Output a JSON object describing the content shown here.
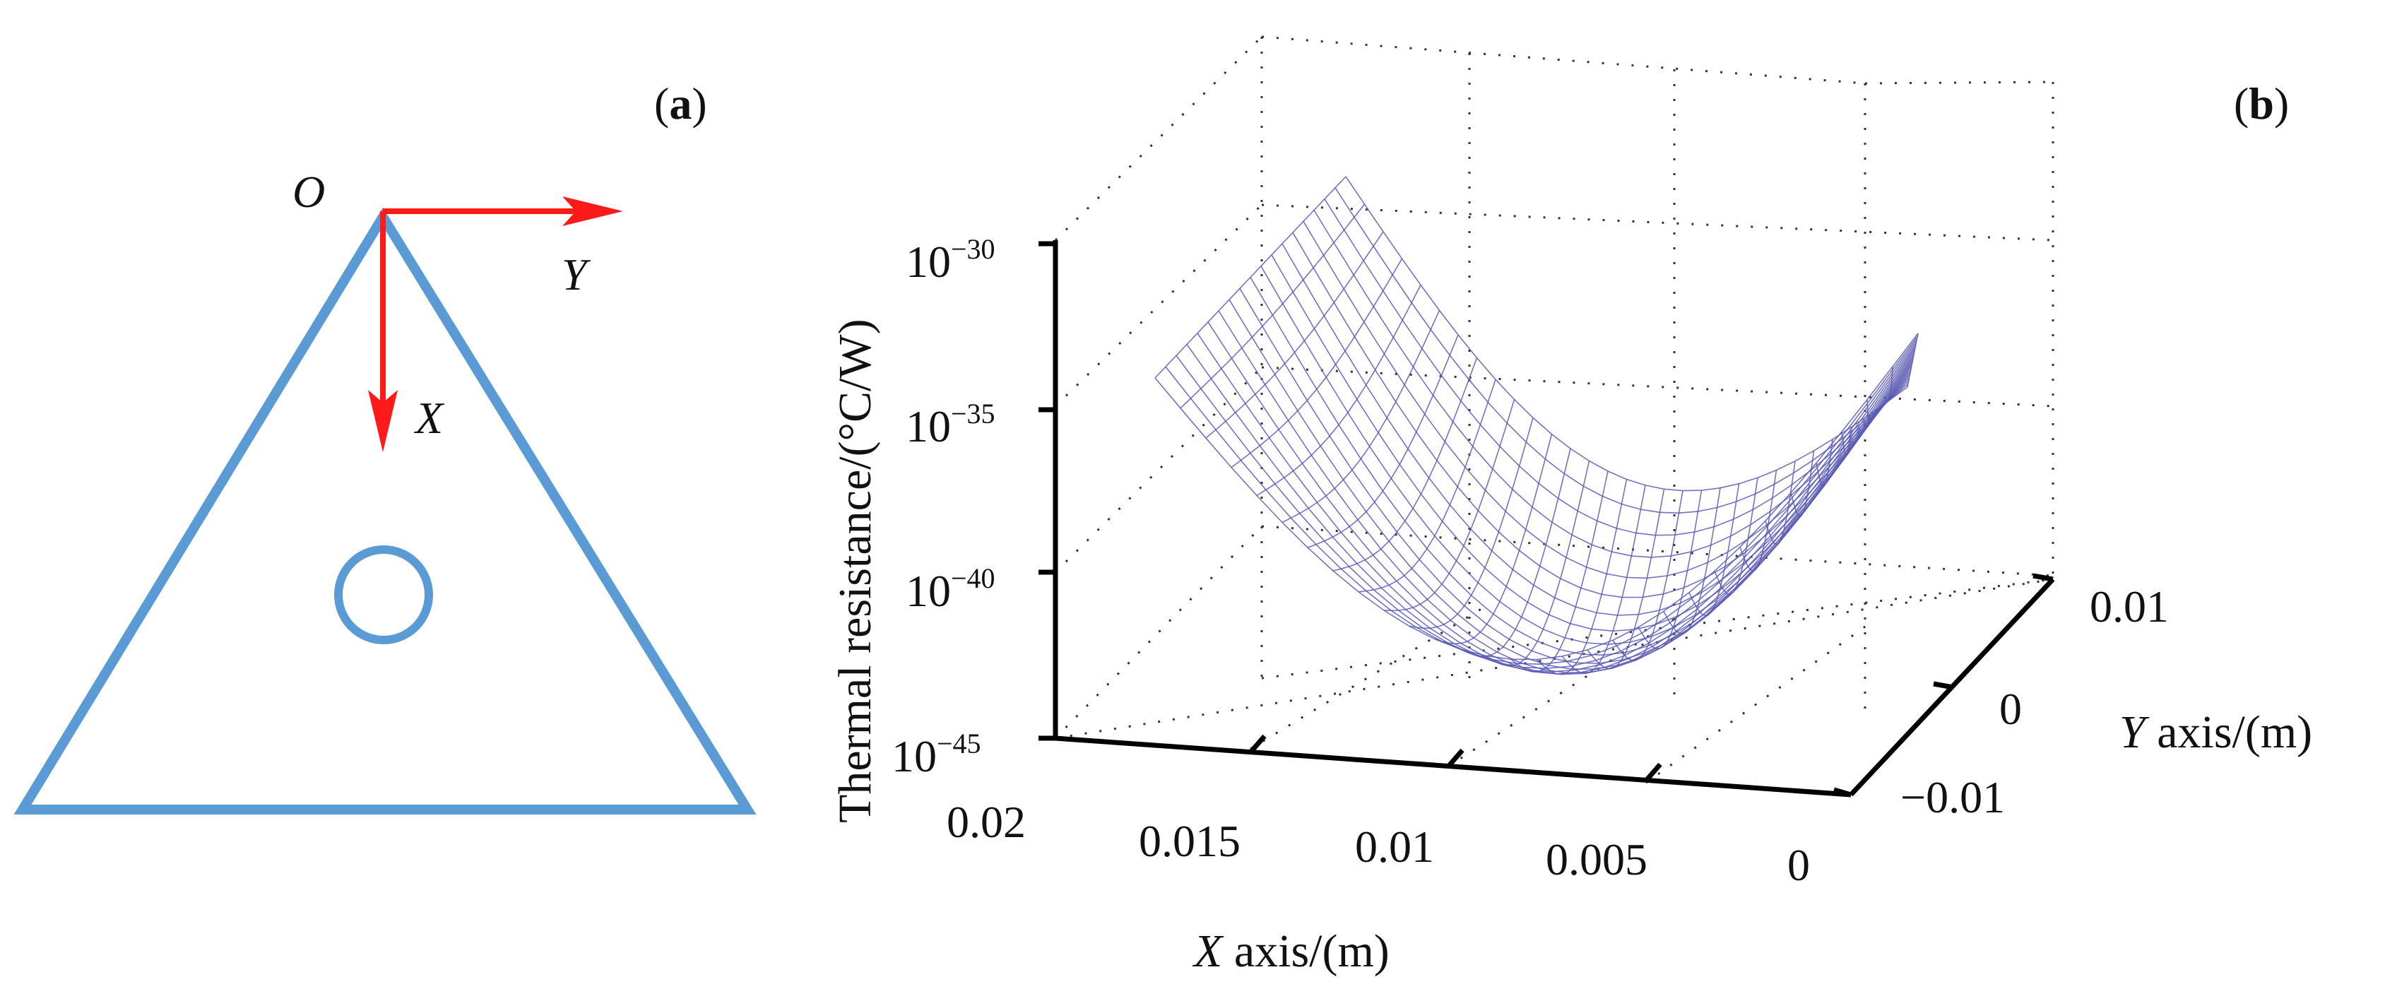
{
  "colors": {
    "triangle": "#5b9bd5",
    "arrow": "#ff1a1a",
    "surface": "#5a5ab4",
    "surface_dark": "#1a1a8c",
    "axis": "#000000",
    "grid": "#333333"
  },
  "panel_a": {
    "label_open": "(",
    "label_letter": "a",
    "label_close": ")",
    "origin_label": "O",
    "y_axis_label": "Y",
    "x_axis_label": "X"
  },
  "panel_b": {
    "label_open": "(",
    "label_letter": "b",
    "label_close": ")",
    "z_axis_title": "Thermal  resistance/(°C/W)",
    "x_axis_italic": "X",
    "x_axis_rest": " axis/(m)",
    "y_axis_italic": "Y",
    "y_axis_rest": " axis/(m)",
    "z_ticks": [
      {
        "base": "10",
        "exp": "−30"
      },
      {
        "base": "10",
        "exp": "−35"
      },
      {
        "base": "10",
        "exp": "−40"
      },
      {
        "base": "10",
        "exp": "−45"
      }
    ],
    "x_ticks": [
      "0.02",
      "0.015",
      "0.01",
      "0.005",
      "0"
    ],
    "y_ticks": [
      "0.01",
      "0",
      "−0.01"
    ]
  }
}
